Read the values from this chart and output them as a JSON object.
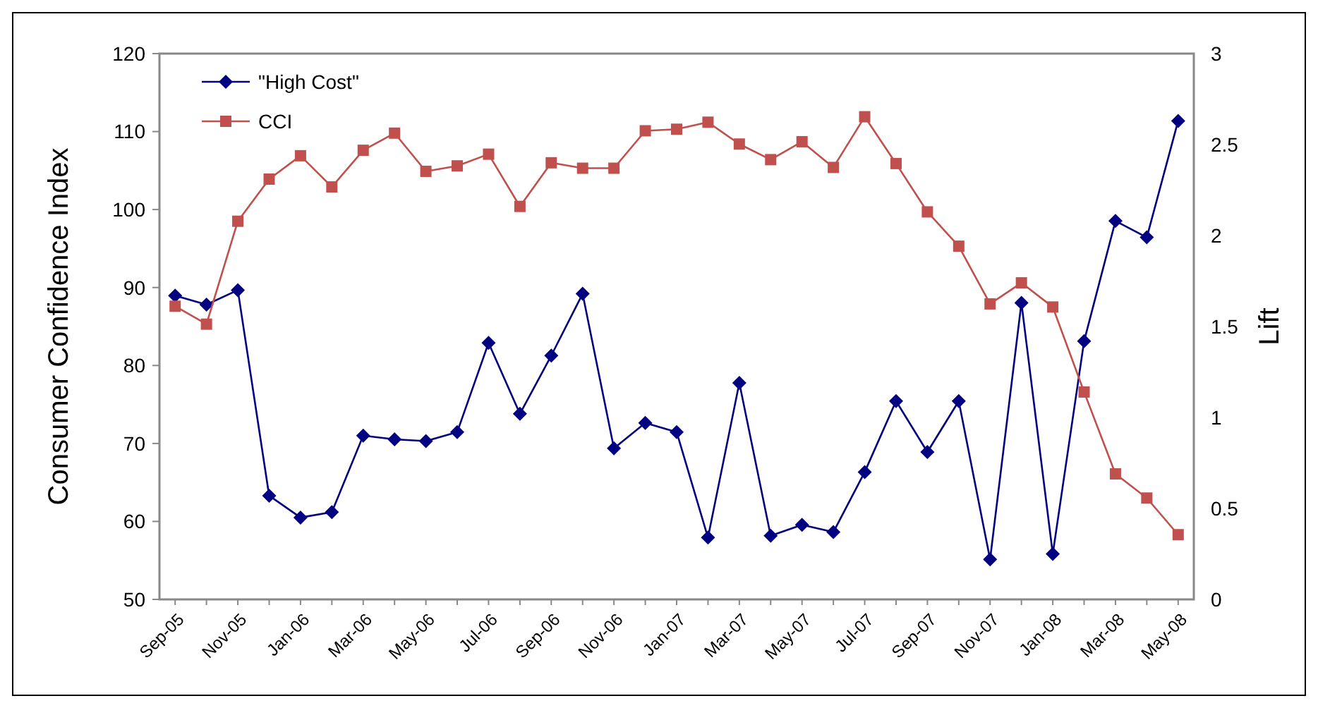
{
  "chart_data": {
    "type": "line",
    "ylabel": "Consumer Confidence Index",
    "y2label": "Lift",
    "categories": [
      "Sep-05",
      null,
      "Nov-05",
      null,
      "Jan-06",
      null,
      "Mar-06",
      null,
      "May-06",
      null,
      "Jul-06",
      null,
      "Sep-06",
      null,
      "Nov-06",
      null,
      "Jan-07",
      null,
      "Mar-07",
      null,
      "May-07",
      null,
      "Jul-07",
      null,
      "Sep-07",
      null,
      "Nov-07",
      null,
      "Jan-08",
      null,
      "Mar-08",
      null,
      "May-08"
    ],
    "ylim": [
      50,
      120
    ],
    "yticks": [
      50,
      60,
      70,
      80,
      90,
      100,
      110,
      120
    ],
    "y2lim": [
      0,
      3
    ],
    "y2ticks": [
      0,
      0.5,
      1,
      1.5,
      2,
      2.5,
      3
    ],
    "legend": "top left",
    "line_style": "solid",
    "series": [
      {
        "name": "\"High Cost\"",
        "color": "#000080",
        "axis": "y2",
        "marker": "diamond",
        "values": [
          1.67,
          1.62,
          1.7,
          0.57,
          0.45,
          0.48,
          0.9,
          0.88,
          0.87,
          0.92,
          1.41,
          1.02,
          1.34,
          1.68,
          0.83,
          0.97,
          0.92,
          0.34,
          1.19,
          0.35,
          0.41,
          0.37,
          0.7,
          1.09,
          0.81,
          1.09,
          0.22,
          1.63,
          0.25,
          1.42,
          2.08,
          1.99,
          2.63
        ]
      },
      {
        "name": "CCI",
        "color": "#c0504d",
        "axis": "y",
        "marker": "square",
        "values": [
          87.6,
          85.3,
          98.5,
          103.9,
          106.9,
          102.9,
          107.6,
          109.8,
          104.9,
          105.6,
          107.1,
          100.4,
          106.0,
          105.3,
          105.3,
          110.1,
          110.3,
          111.2,
          108.4,
          106.4,
          108.7,
          105.4,
          111.9,
          105.9,
          99.7,
          95.3,
          87.9,
          90.6,
          87.5,
          76.6,
          66.1,
          63.0,
          58.3
        ]
      }
    ]
  }
}
